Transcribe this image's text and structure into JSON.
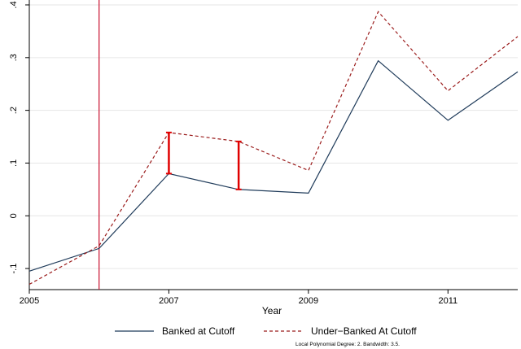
{
  "chart_data": {
    "type": "line",
    "xlabel": "Year",
    "ylabel": "",
    "xlim": [
      2005,
      2012
    ],
    "ylim": [
      -0.14,
      0.4
    ],
    "x_ticks": [
      2005,
      2007,
      2009,
      2011
    ],
    "x_tick_labels": [
      "2005",
      "2007",
      "2009",
      "2011"
    ],
    "y_ticks": [
      -0.1,
      0,
      0.1,
      0.2,
      0.3,
      0.4
    ],
    "y_tick_labels": [
      "-.1",
      "0",
      ".1",
      ".2",
      ".3",
      ".4"
    ],
    "grid": true,
    "x": [
      2005,
      2006,
      2007,
      2008,
      2009,
      2010,
      2011,
      2012
    ],
    "series": [
      {
        "name": "Banked at Cutoff",
        "values": [
          -0.105,
          -0.062,
          0.08,
          0.05,
          0.043,
          0.294,
          0.181,
          0.273
        ],
        "color": "#1f3b5a",
        "style": "solid"
      },
      {
        "name": "Under−Banked At Cutoff",
        "values": [
          -0.13,
          -0.057,
          0.158,
          0.141,
          0.086,
          0.387,
          0.237,
          0.34
        ],
        "color": "#9b1c1c",
        "style": "dashed"
      }
    ],
    "vertical_line": {
      "x": 2006,
      "color": "#c8102e"
    },
    "gap_markers": [
      {
        "x": 2007,
        "y_low": 0.08,
        "y_high": 0.158,
        "color": "#e00000"
      },
      {
        "x": 2008,
        "y_low": 0.05,
        "y_high": 0.141,
        "color": "#e00000"
      }
    ],
    "legend_position": "bottom",
    "note": "Local Polynomial Degree: 2. Bandwidth: 3.5."
  }
}
